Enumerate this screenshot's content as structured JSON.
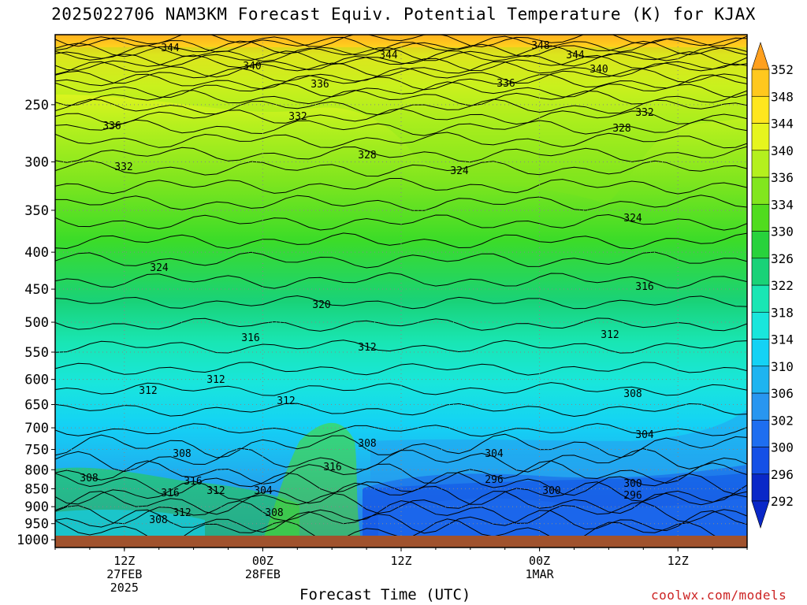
{
  "header": {
    "title": "2025022706 NAM3KM Forecast Equiv. Potential Temperature (K) for KJAX"
  },
  "footer": {
    "xaxis_title": "Forecast Time (UTC)",
    "credit": "coolwx.com/models"
  },
  "colors": {
    "ground": "#a0522d",
    "contour": "#000000",
    "grid": "#888888"
  },
  "chart_data": {
    "type": "heatmap",
    "title": "2025022706 NAM3KM Forecast Equiv. Potential Temperature (K) for KJAX",
    "xlabel": "Forecast Time (UTC)",
    "ylabel": "",
    "y_scale": "log-pressure (inverted)",
    "y_ticks": [
      250,
      300,
      350,
      400,
      450,
      500,
      550,
      600,
      650,
      700,
      750,
      800,
      850,
      900,
      950,
      1000
    ],
    "x_ticks": [
      {
        "hour": 6,
        "lines": [
          "12Z",
          "27FEB",
          "2025"
        ]
      },
      {
        "hour": 18,
        "lines": [
          "00Z",
          "28FEB"
        ]
      },
      {
        "hour": 30,
        "lines": [
          "12Z"
        ]
      },
      {
        "hour": 42,
        "lines": [
          "00Z",
          "1MAR"
        ]
      },
      {
        "hour": 54,
        "lines": [
          "12Z"
        ]
      }
    ],
    "xlim": [
      0,
      60
    ],
    "ylim": [
      1025,
      200
    ],
    "grid": true,
    "colorbar": {
      "levels": [
        292,
        296,
        300,
        302,
        306,
        310,
        314,
        318,
        322,
        326,
        330,
        334,
        336,
        340,
        344,
        348,
        352
      ],
      "colors": [
        "#0a28c8",
        "#1450e6",
        "#1e6ef0",
        "#2896f0",
        "#1eb4f0",
        "#14d2f5",
        "#19e6dc",
        "#19e6b4",
        "#19d278",
        "#28d23c",
        "#50dc1e",
        "#82e61e",
        "#b4f01e",
        "#e6f51e",
        "#ffe61e",
        "#ffc81e",
        "#ffa01e"
      ],
      "extend": "both"
    },
    "contour_labels": [
      {
        "text": "344",
        "x": 216,
        "y": 60
      },
      {
        "text": "340",
        "x": 320,
        "y": 83
      },
      {
        "text": "336",
        "x": 406,
        "y": 106
      },
      {
        "text": "336",
        "x": 142,
        "y": 159
      },
      {
        "text": "332",
        "x": 378,
        "y": 147
      },
      {
        "text": "332",
        "x": 157,
        "y": 211
      },
      {
        "text": "328",
        "x": 466,
        "y": 196
      },
      {
        "text": "324",
        "x": 583,
        "y": 216
      },
      {
        "text": "324",
        "x": 202,
        "y": 339
      },
      {
        "text": "344",
        "x": 493,
        "y": 69
      },
      {
        "text": "348",
        "x": 686,
        "y": 57
      },
      {
        "text": "344",
        "x": 730,
        "y": 69
      },
      {
        "text": "340",
        "x": 760,
        "y": 87
      },
      {
        "text": "336",
        "x": 642,
        "y": 105
      },
      {
        "text": "332",
        "x": 818,
        "y": 142
      },
      {
        "text": "328",
        "x": 789,
        "y": 162
      },
      {
        "text": "324",
        "x": 803,
        "y": 276
      },
      {
        "text": "320",
        "x": 408,
        "y": 386
      },
      {
        "text": "316",
        "x": 318,
        "y": 428
      },
      {
        "text": "316",
        "x": 818,
        "y": 363
      },
      {
        "text": "312",
        "x": 466,
        "y": 440
      },
      {
        "text": "312",
        "x": 774,
        "y": 424
      },
      {
        "text": "312",
        "x": 274,
        "y": 481
      },
      {
        "text": "312",
        "x": 188,
        "y": 495
      },
      {
        "text": "312",
        "x": 363,
        "y": 508
      },
      {
        "text": "308",
        "x": 803,
        "y": 499
      },
      {
        "text": "308",
        "x": 466,
        "y": 562
      },
      {
        "text": "304",
        "x": 818,
        "y": 551
      },
      {
        "text": "304",
        "x": 627,
        "y": 575
      },
      {
        "text": "308",
        "x": 231,
        "y": 575
      },
      {
        "text": "308",
        "x": 113,
        "y": 606
      },
      {
        "text": "316",
        "x": 245,
        "y": 610
      },
      {
        "text": "316",
        "x": 422,
        "y": 592
      },
      {
        "text": "312",
        "x": 274,
        "y": 622
      },
      {
        "text": "304",
        "x": 334,
        "y": 622
      },
      {
        "text": "296",
        "x": 627,
        "y": 608
      },
      {
        "text": "300",
        "x": 803,
        "y": 613
      },
      {
        "text": "300",
        "x": 700,
        "y": 622
      },
      {
        "text": "296",
        "x": 803,
        "y": 628
      },
      {
        "text": "316",
        "x": 216,
        "y": 625
      },
      {
        "text": "312",
        "x": 231,
        "y": 650
      },
      {
        "text": "308",
        "x": 201,
        "y": 659
      },
      {
        "text": "308",
        "x": 348,
        "y": 650
      }
    ]
  }
}
